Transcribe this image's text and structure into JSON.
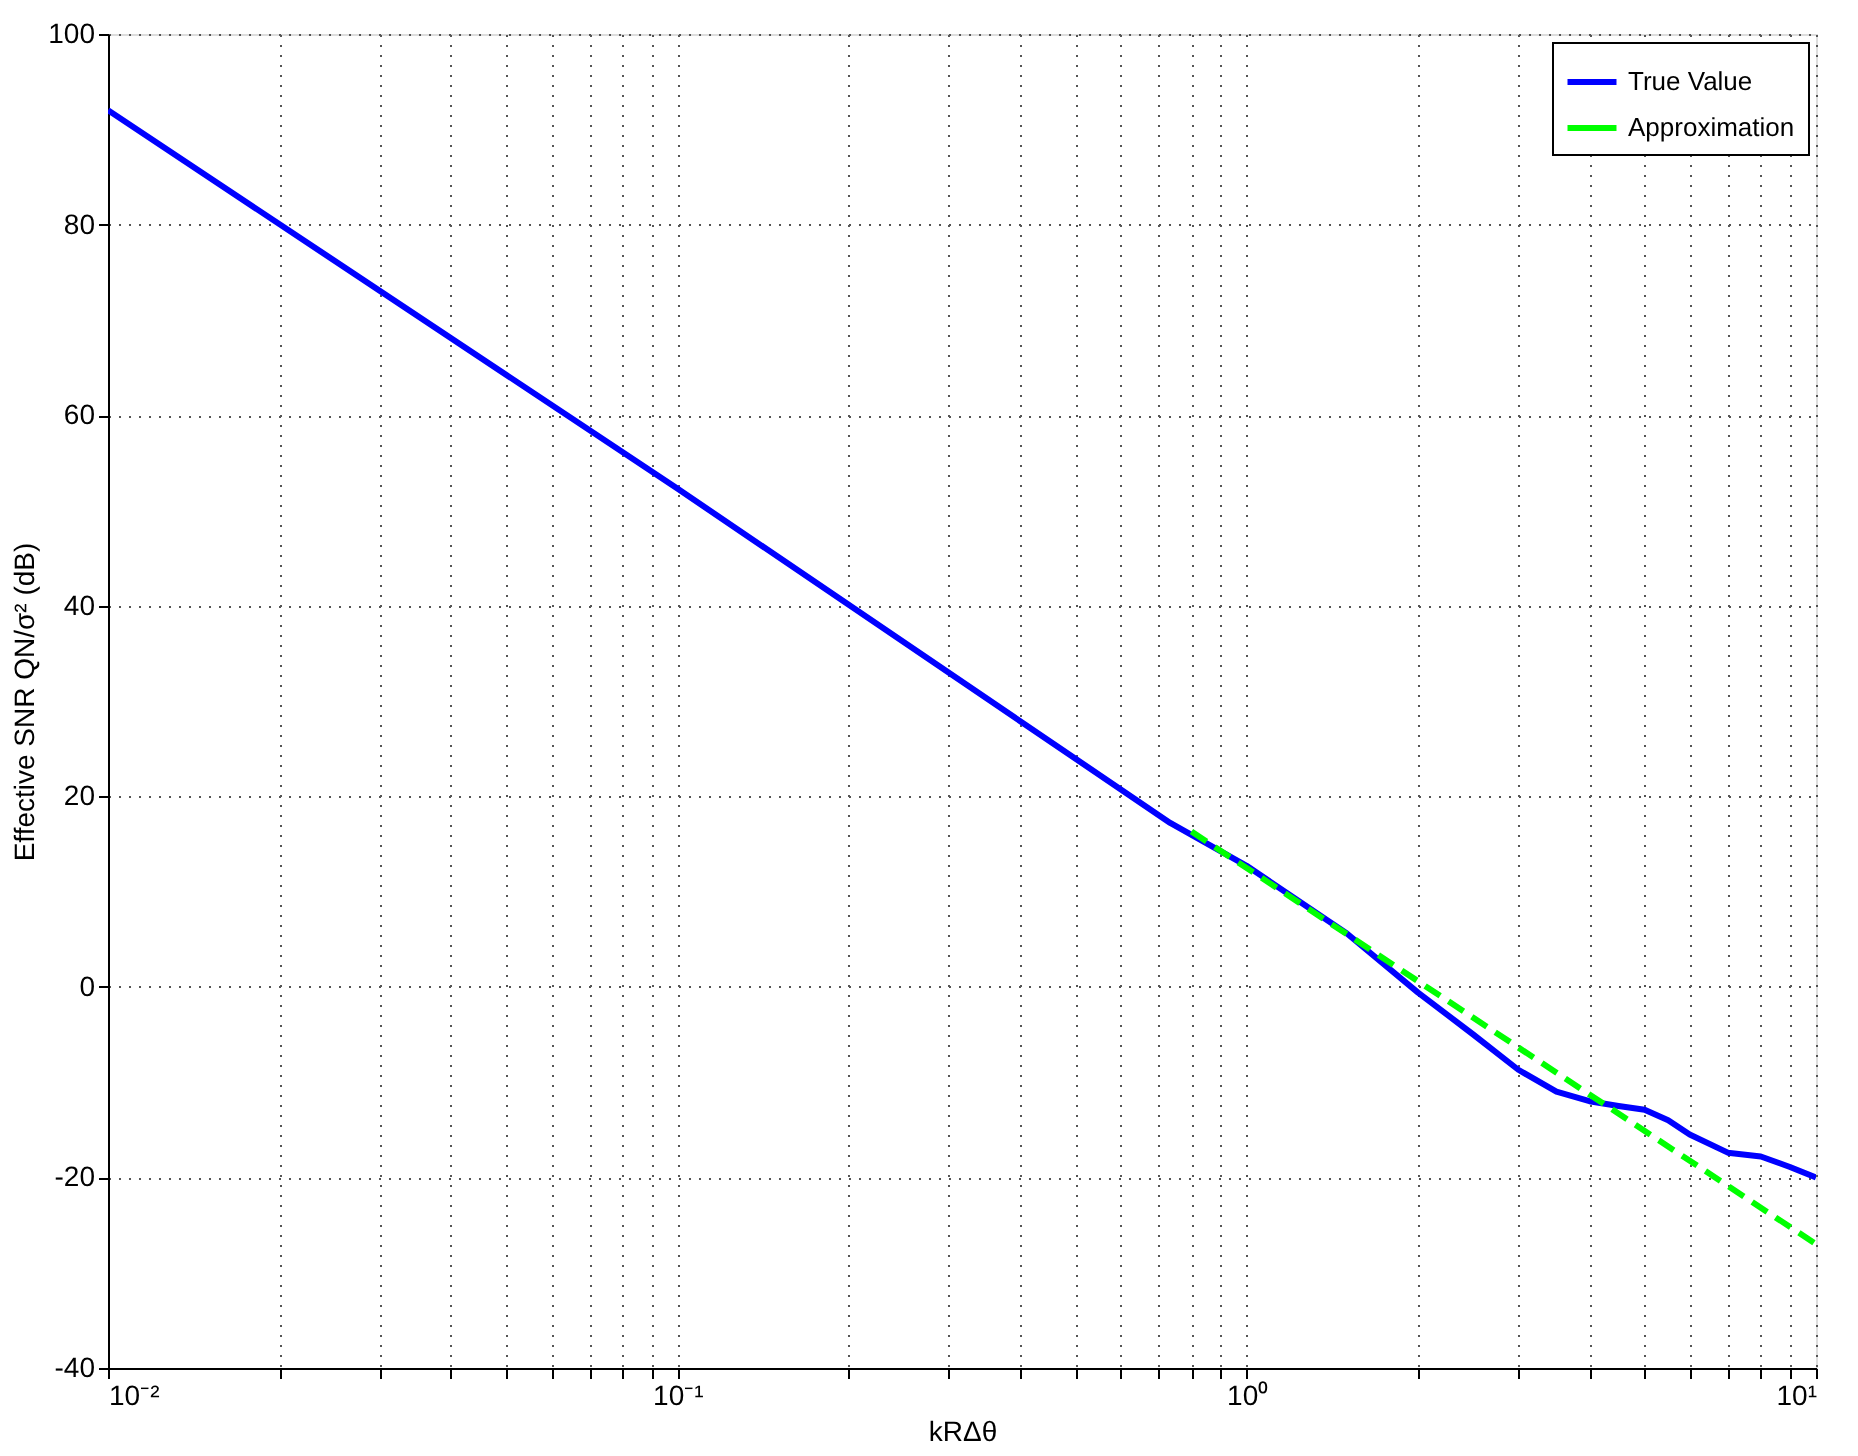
{
  "chart_data": {
    "type": "line",
    "xlabel": "kRΔθ",
    "ylabel": "Effective SNR  QN/σ² (dB)",
    "log": "x",
    "grid": true,
    "legend": "top right",
    "xlim": [
      0.01,
      10
    ],
    "ylim": [
      -40,
      100
    ],
    "xticks": [
      {
        "value": 0.01,
        "label": "10⁻²"
      },
      {
        "value": 0.02,
        "label": null
      },
      {
        "value": 0.03,
        "label": null
      },
      {
        "value": 0.04,
        "label": null
      },
      {
        "value": 0.05,
        "label": null
      },
      {
        "value": 0.06,
        "label": null
      },
      {
        "value": 0.07,
        "label": null
      },
      {
        "value": 0.08,
        "label": null
      },
      {
        "value": 0.09,
        "label": null
      },
      {
        "value": 0.1,
        "label": "10⁻¹"
      },
      {
        "value": 0.2,
        "label": null
      },
      {
        "value": 0.3,
        "label": null
      },
      {
        "value": 0.4,
        "label": null
      },
      {
        "value": 0.5,
        "label": null
      },
      {
        "value": 0.6,
        "label": null
      },
      {
        "value": 0.7,
        "label": null
      },
      {
        "value": 0.8,
        "label": null
      },
      {
        "value": 0.9,
        "label": null
      },
      {
        "value": 1,
        "label": "10⁰"
      },
      {
        "value": 2,
        "label": null
      },
      {
        "value": 3,
        "label": null
      },
      {
        "value": 4,
        "label": null
      },
      {
        "value": 5,
        "label": null
      },
      {
        "value": 6,
        "label": null
      },
      {
        "value": 7,
        "label": null
      },
      {
        "value": 8,
        "label": null
      },
      {
        "value": 9,
        "label": null
      },
      {
        "value": 10,
        "label": "10¹"
      }
    ],
    "yticks": [
      -40,
      -20,
      0,
      20,
      40,
      60,
      80,
      100
    ],
    "series": [
      {
        "name": "True Value",
        "color": "#0000ff",
        "line_style": "solid",
        "x": [
          0.01,
          0.1,
          0.734,
          1,
          1.5,
          2,
          2.5,
          3,
          3.5,
          4,
          4.5,
          5,
          5.5,
          6,
          7,
          8,
          9,
          10
        ],
        "values": [
          92,
          52.3,
          17.2,
          12.7,
          5.6,
          -0.6,
          -5,
          -8.7,
          -11,
          -12,
          -12.5,
          -12.9,
          -14,
          -15.5,
          -17.4,
          -17.8,
          -18.9,
          -20
        ]
      },
      {
        "name": "Approximation",
        "color": "#00ff00",
        "line_style": "dashed",
        "x": [
          0.8,
          10
        ],
        "values": [
          16.3,
          -27
        ]
      }
    ]
  }
}
